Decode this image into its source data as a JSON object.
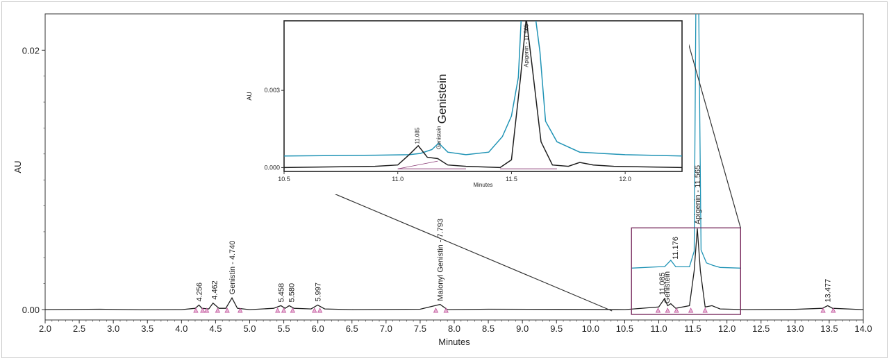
{
  "chart_data": [
    {
      "type": "line",
      "xlabel": "Minutes",
      "ylabel": "AU",
      "xlim": [
        2.0,
        14.0
      ],
      "ylim": [
        -0.0008,
        0.0228
      ],
      "x_ticks": [
        "2.0",
        "2.5",
        "3.0",
        "3.5",
        "4.0",
        "4.5",
        "5.0",
        "5.5",
        "6.0",
        "6.5",
        "7.0",
        "7.5",
        "8.0",
        "8.5",
        "9.0",
        "9.5",
        "10.0",
        "10.5",
        "11.0",
        "11.5",
        "12.0",
        "12.5",
        "13.0",
        "13.5",
        "14.0"
      ],
      "y_ticks": [
        {
          "value": 0.0,
          "label": "0.00"
        },
        {
          "value": 0.02,
          "label": "0.02"
        }
      ],
      "grid": false,
      "colors": {
        "black_trace": "#1e1e1e",
        "blue_trace": "#1f93b5",
        "zoom_box": "#7a2d5f",
        "markers": "#c0569c"
      },
      "series": [
        {
          "color": "#1e1e1e",
          "x": [
            2.0,
            2.8,
            3.4,
            4.0,
            4.2,
            4.256,
            4.3,
            4.4,
            4.462,
            4.55,
            4.65,
            4.74,
            4.82,
            5.0,
            5.35,
            5.458,
            5.52,
            5.58,
            5.65,
            5.9,
            5.997,
            6.1,
            6.5,
            7.5,
            7.793,
            7.9,
            8.5,
            9.5,
            10.5,
            11.0,
            11.085,
            11.13,
            11.176,
            11.25,
            11.45,
            11.52,
            11.565,
            11.61,
            11.68,
            11.78,
            11.9,
            12.3,
            13.0,
            13.4,
            13.477,
            13.55,
            14.0
          ],
          "y": [
            0.0,
            3e-05,
            -2e-05,
            0.0,
            0.0001,
            0.00035,
            0.0001,
            5e-05,
            0.0005,
            0.0001,
            0.0001,
            0.0009,
            0.0001,
            0.0,
            0.0001,
            0.0003,
            0.0001,
            0.0003,
            0.0001,
            5e-05,
            0.00035,
            5e-05,
            0.0,
            3e-05,
            0.0004,
            0.0,
            3e-05,
            2e-05,
            0.0,
            0.0002,
            0.00085,
            0.0003,
            0.00045,
            0.0001,
            0.0003,
            0.003,
            0.00625,
            0.003,
            0.0002,
            0.0003,
            5e-05,
            0.0,
            2e-05,
            0.0001,
            0.0003,
            0.0001,
            0.0
          ]
        },
        {
          "color": "#1f93b5",
          "x": [
            10.6,
            11.0,
            11.085,
            11.176,
            11.25,
            11.45,
            11.52,
            11.545,
            11.585,
            11.62,
            11.7,
            11.8,
            11.9,
            12.2
          ],
          "y": [
            0.0032,
            0.0033,
            0.0033,
            0.0038,
            0.0033,
            0.0033,
            0.0045,
            0.024,
            0.024,
            0.0046,
            0.0036,
            0.0034,
            0.00325,
            0.0032
          ]
        }
      ],
      "peak_labels": [
        {
          "x": 4.256,
          "label": "4.256"
        },
        {
          "x": 4.462,
          "label": "4.462"
        },
        {
          "x": 4.74,
          "label": "Genistin - 4.740"
        },
        {
          "x": 5.458,
          "label": "5.458"
        },
        {
          "x": 5.58,
          "label": "5.580"
        },
        {
          "x": 5.997,
          "label": "5.997"
        },
        {
          "x": 7.793,
          "label": "Malonyl Genistin - 7.793"
        },
        {
          "x": 11.085,
          "label": "11.085"
        },
        {
          "x": 11.176,
          "label": "Genistein"
        },
        {
          "x": 11.176,
          "label": "11.176"
        },
        {
          "x": 11.565,
          "label": "Apigenin - 11.565"
        },
        {
          "x": 13.477,
          "label": "13.477"
        }
      ],
      "zoom_region": {
        "x": [
          10.6,
          12.2
        ],
        "y": [
          -0.0008,
          0.0063
        ]
      }
    },
    {
      "type": "line",
      "xlabel": "Minutes",
      "ylabel": "AU",
      "xlim": [
        10.5,
        12.25
      ],
      "ylim": [
        -0.00015,
        0.0057
      ],
      "x_ticks": [
        "10.5",
        "11.0",
        "11.5",
        "12.0"
      ],
      "y_ticks": [
        {
          "value": 0.0,
          "label": "0.000"
        },
        {
          "value": 0.003,
          "label": "0.003"
        }
      ],
      "annotation": "Genistein",
      "series": [
        {
          "color": "#1e1e1e",
          "x": [
            10.5,
            10.9,
            11.0,
            11.05,
            11.09,
            11.13,
            11.176,
            11.22,
            11.3,
            11.45,
            11.5,
            11.54,
            11.565,
            11.59,
            11.63,
            11.68,
            11.75,
            11.8,
            11.86,
            11.95,
            12.25
          ],
          "y": [
            0.0,
            5e-05,
            0.0001,
            0.0005,
            0.00085,
            0.0004,
            0.00035,
            0.0001,
            5e-05,
            0.0,
            0.0003,
            0.0035,
            0.0058,
            0.004,
            0.001,
            0.0001,
            5e-05,
            0.0002,
            0.0001,
            5e-05,
            0.0
          ]
        },
        {
          "color": "#1f93b5",
          "x": [
            10.5,
            10.9,
            11.05,
            11.1,
            11.15,
            11.18,
            11.22,
            11.3,
            11.4,
            11.46,
            11.5,
            11.53,
            11.545,
            11.6,
            11.625,
            11.65,
            11.7,
            11.8,
            12.0,
            12.25
          ],
          "y": [
            0.00045,
            0.00048,
            0.0005,
            0.00055,
            0.0007,
            0.00095,
            0.0006,
            0.0005,
            0.0006,
            0.0012,
            0.002,
            0.0035,
            0.0062,
            0.0062,
            0.0045,
            0.0018,
            0.001,
            0.0006,
            0.0005,
            0.00045
          ]
        }
      ],
      "peak_labels": [
        {
          "x": 11.085,
          "label": "11.085"
        },
        {
          "x": 11.176,
          "label": "Genistein"
        },
        {
          "x": 11.565,
          "label": "Apigenin - 11.565"
        }
      ]
    }
  ]
}
